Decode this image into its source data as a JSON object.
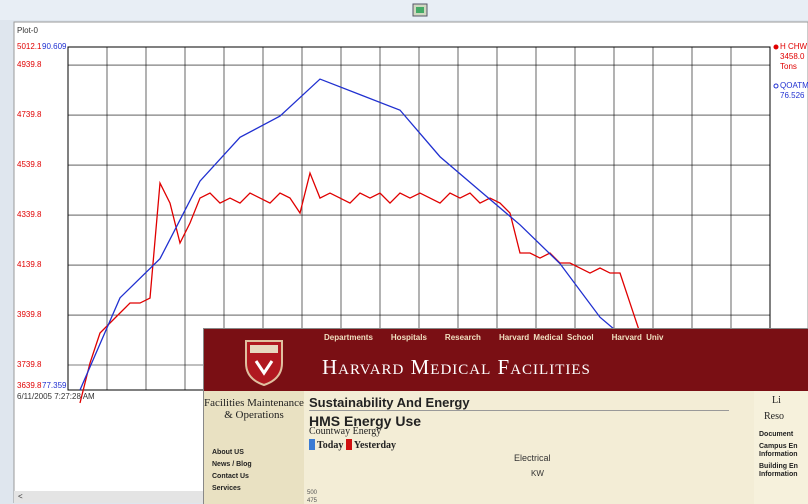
{
  "window": {
    "title": "Plot-0",
    "date": "6/11/2005 7:27:28 AM"
  },
  "plot": {
    "type": "line",
    "left_axis": {
      "lim": [
        3639.8,
        5012.1
      ],
      "ticks": [
        4939.8,
        4739.8,
        4539.8,
        4339.8,
        4139.8,
        3939.8,
        3739.8
      ],
      "color": "#e00000"
    },
    "right_axis": {
      "lim": [
        77.359,
        90.609
      ],
      "color": "#2030d0"
    },
    "series": [
      {
        "name": "H CHW Tons",
        "reading": "3458.0",
        "unit": "Tons",
        "color": "#e00000",
        "axis": "left",
        "values": [
          3587.8,
          3747.8,
          3867.8,
          3907.8,
          3947.8,
          3987.8,
          3987.8,
          4007.8,
          4467.8,
          4387.8,
          4227.8,
          4307.8,
          4407.8,
          4427.8,
          4387.8,
          4407.8,
          4387.8,
          4427.8,
          4407.8,
          4387.8,
          4427.8,
          4407.8,
          4347.8,
          4507.8,
          4407.8,
          4427.8,
          4407.8,
          4387.8,
          4427.8,
          4407.8,
          4427.8,
          4387.8,
          4427.8,
          4407.8,
          4427.8,
          4407.8,
          4387.8,
          4427.8,
          4407.8,
          4427.8,
          4387.8,
          4407.8,
          4387.8,
          4347.8,
          4187.8,
          4187.8,
          4167.8,
          4187.8,
          4147.8,
          4147.8,
          4127.8,
          4107.8,
          4127.8,
          4107.8,
          4107.8,
          3987.8,
          3867.8
        ]
      },
      {
        "name": "QOATMP_CV",
        "reading": "76.526",
        "color": "#2030d0",
        "axis": "right",
        "values": [
          77.359,
          80.92,
          82.43,
          85.43,
          87.12,
          87.94,
          89.37,
          88.77,
          88.17,
          86.37,
          85.05,
          83.74,
          82.24,
          80.17,
          78.86
        ]
      }
    ]
  },
  "web": {
    "nav": [
      "Departments",
      "Hospitals",
      "Research",
      "Harvard Medical School",
      "Harvard Univ"
    ],
    "brand": "Harvard Medical Facilities",
    "sidebar": {
      "title": "Facilities Maintenance & Operations",
      "links": [
        "About US",
        "News / Blog",
        "Contact Us",
        "Services"
      ]
    },
    "main": {
      "section": "Sustainability And Energy",
      "heading": "HMS Energy Use",
      "subheading": "Countway Energy",
      "legend": [
        "Today",
        "Yesterday"
      ],
      "chart_title": "Electrical",
      "unit": "KW",
      "yticks": [
        "500",
        "475"
      ]
    },
    "right": {
      "items": [
        "Li",
        "Reso",
        "Document",
        "Campus En Information",
        "Building En Information"
      ]
    }
  }
}
